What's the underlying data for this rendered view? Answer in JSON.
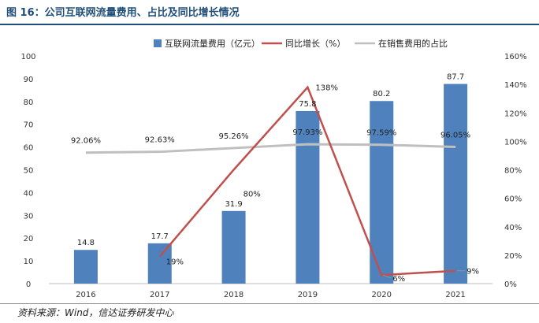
{
  "figure": {
    "title": "图 16：公司互联网流量费用、占比及同比增长情况",
    "source": "资料来源：Wind，信达证券研发中心"
  },
  "colors": {
    "bar": "#4f81bd",
    "growth_line": "#c0504d",
    "share_line": "#bfbfbf",
    "title": "#1f4e79"
  },
  "chart_data": {
    "type": "bar",
    "categories": [
      "2016",
      "2017",
      "2018",
      "2019",
      "2020",
      "2021"
    ],
    "series": [
      {
        "name": "互联网流量费用（亿元）",
        "type": "bar",
        "axis": "left",
        "values": [
          14.8,
          17.7,
          31.9,
          75.8,
          80.2,
          87.7
        ],
        "labels": [
          "14.8",
          "17.7",
          "31.9",
          "75.8",
          "80.2",
          "87.7"
        ]
      },
      {
        "name": "同比增长（%）",
        "type": "line",
        "axis": "right",
        "values": [
          null,
          19,
          80,
          138,
          6,
          9
        ],
        "labels": [
          "",
          "19%",
          "80%",
          "138%",
          "6%",
          "9%"
        ]
      },
      {
        "name": "在销售费用的占比",
        "type": "line",
        "axis": "right",
        "values": [
          92.06,
          92.63,
          95.26,
          97.93,
          97.59,
          96.05
        ],
        "labels": [
          "92.06%",
          "92.63%",
          "95.26%",
          "97.93%",
          "97.59%",
          "96.05%"
        ]
      }
    ],
    "y_left": {
      "ylim": [
        0,
        100
      ],
      "ticks": [
        "0",
        "10",
        "20",
        "30",
        "40",
        "50",
        "60",
        "70",
        "80",
        "90",
        "100"
      ]
    },
    "y_right": {
      "ylim": [
        0,
        160
      ],
      "ticks": [
        "0%",
        "20%",
        "40%",
        "60%",
        "80%",
        "100%",
        "120%",
        "140%",
        "160%"
      ]
    },
    "grid": false,
    "legend_position": "top-center"
  }
}
